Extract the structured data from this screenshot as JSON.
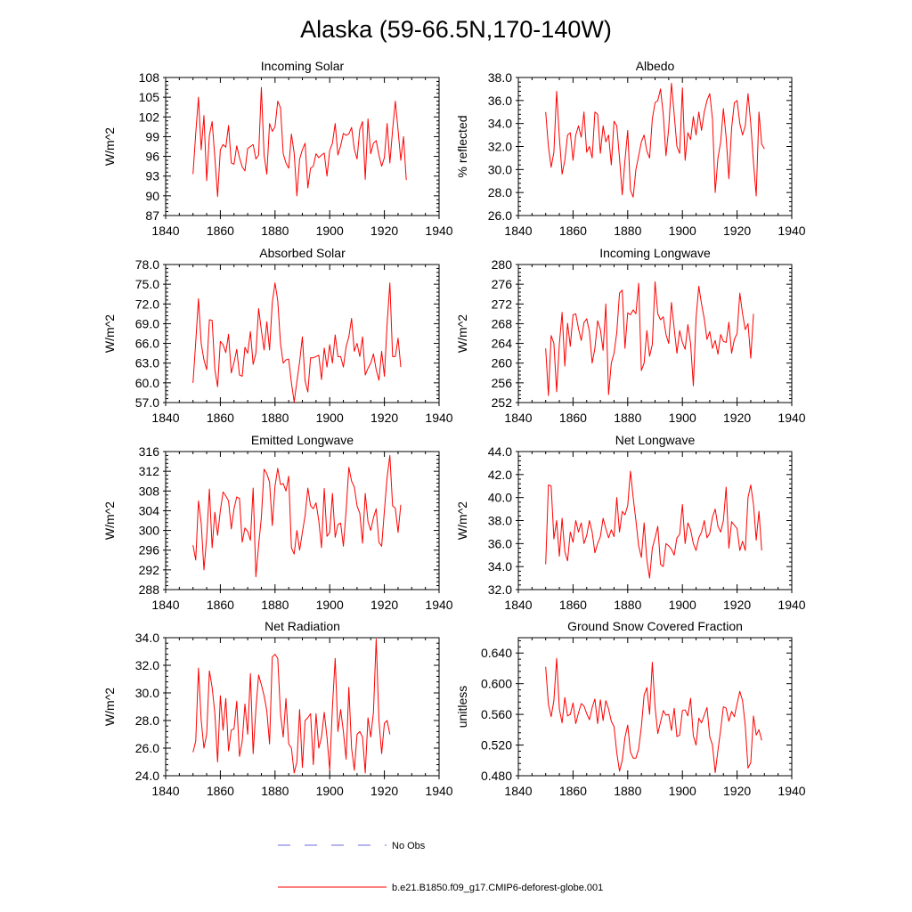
{
  "figure": {
    "title": "Alaska (59-66.5N,170-140W)",
    "x_ticks": [
      1840,
      1860,
      1880,
      1900,
      1920,
      1940
    ],
    "line_color": "#ff0000",
    "obs_color": "#6b6bdb"
  },
  "legend": {
    "obs_label": "No Obs",
    "model_label": "b.e21.B1850.f09_g17.CMIP6-deforest-globe.001"
  },
  "chart_data": [
    {
      "type": "line",
      "title": "Incoming Solar",
      "ylabel": "W/m^2",
      "xlim": [
        1840,
        1940
      ],
      "ylim": [
        87,
        108
      ],
      "yticks": [
        "87",
        "90",
        "93",
        "96",
        "99",
        "102",
        "105",
        "108"
      ],
      "xstart": 1850,
      "values": [
        93.3,
        99.5,
        105.0,
        97.0,
        102.2,
        92.3,
        99.2,
        101.3,
        95.8,
        89.9,
        97.0,
        97.8,
        97.4,
        100.7,
        95.0,
        94.8,
        97.6,
        95.8,
        94.4,
        93.8,
        97.2,
        97.5,
        97.8,
        95.6,
        96.2,
        106.5,
        96.2,
        93.3,
        101.0,
        99.8,
        100.5,
        104.4,
        103.4,
        96.4,
        95.0,
        94.2,
        99.4,
        96.5,
        90.0,
        95.6,
        97.0,
        98.0,
        91.2,
        94.2,
        94.5,
        96.4,
        95.8,
        96.2,
        96.5,
        93.0,
        96.9,
        98.0,
        101.0,
        96.2,
        97.6,
        99.5,
        99.2,
        99.4,
        100.4,
        97.1,
        95.6,
        100.1,
        101.3,
        92.5,
        101.7,
        96.4,
        98.0,
        98.4,
        96.2,
        94.5,
        95.8,
        101.0,
        95.0,
        100.0,
        104.4,
        100.0,
        95.4,
        99.0,
        92.4
      ]
    },
    {
      "type": "line",
      "title": "Albedo",
      "ylabel": "% reflected",
      "xlim": [
        1840,
        1940
      ],
      "ylim": [
        26,
        38
      ],
      "yticks": [
        "26.0",
        "28.0",
        "30.0",
        "32.0",
        "34.0",
        "36.0",
        "38.0"
      ],
      "xstart": 1850,
      "values": [
        35.0,
        32.0,
        30.2,
        31.5,
        36.8,
        32.8,
        29.6,
        30.8,
        33.0,
        33.2,
        30.8,
        33.0,
        33.8,
        32.8,
        35.0,
        31.5,
        32.0,
        31.0,
        35.0,
        34.8,
        31.4,
        33.8,
        32.4,
        33.0,
        30.4,
        34.2,
        33.8,
        31.0,
        27.8,
        30.8,
        33.4,
        28.2,
        27.6,
        30.0,
        31.2,
        32.4,
        33.0,
        31.6,
        31.0,
        34.4,
        35.8,
        36.0,
        37.0,
        34.8,
        31.2,
        33.6,
        37.5,
        34.8,
        32.0,
        31.4,
        37.1,
        30.8,
        33.2,
        32.6,
        34.6,
        33.0,
        35.0,
        33.4,
        35.0,
        36.0,
        36.6,
        34.4,
        28.0,
        31.0,
        32.4,
        35.3,
        32.8,
        29.2,
        33.6,
        35.8,
        36.0,
        34.0,
        33.0,
        33.8,
        36.6,
        34.0,
        30.6,
        27.7,
        35.0,
        32.2,
        31.8
      ]
    },
    {
      "type": "line",
      "title": "Absorbed Solar",
      "ylabel": "W/m^2",
      "xlim": [
        1840,
        1940
      ],
      "ylim": [
        57,
        78
      ],
      "yticks": [
        "57.0",
        "60.0",
        "63.0",
        "66.0",
        "69.0",
        "72.0",
        "75.0",
        "78.0"
      ],
      "xstart": 1850,
      "values": [
        60.0,
        66.2,
        72.8,
        66.0,
        63.5,
        62.0,
        69.6,
        69.5,
        62.0,
        59.4,
        66.3,
        65.8,
        64.6,
        67.4,
        61.5,
        63.1,
        65.1,
        61.2,
        61.0,
        65.4,
        64.5,
        67.8,
        62.8,
        64.5,
        71.3,
        68.0,
        65.0,
        69.3,
        65.0,
        72.2,
        75.2,
        72.5,
        66.0,
        63.0,
        63.5,
        63.6,
        60.0,
        57.1,
        60.2,
        63.2,
        67.0,
        60.3,
        58.6,
        63.8,
        63.8,
        64.0,
        64.2,
        60.5,
        65.3,
        62.4,
        65.8,
        63.0,
        67.3,
        64.0,
        64.0,
        62.4,
        65.5,
        67.0,
        69.8,
        64.8,
        66.0,
        64.0,
        67.0,
        61.2,
        62.2,
        63.0,
        64.4,
        62.0,
        60.4,
        64.8,
        61.0,
        69.0,
        75.2,
        64.0,
        64.0,
        66.8,
        62.4
      ]
    },
    {
      "type": "line",
      "title": "Incoming Longwave",
      "ylabel": "W/m^2",
      "xlim": [
        1840,
        1940
      ],
      "ylim": [
        252,
        280
      ],
      "yticks": [
        "252",
        "256",
        "260",
        "264",
        "268",
        "272",
        "276",
        "280"
      ],
      "xstart": 1850,
      "values": [
        263.0,
        253.4,
        265.6,
        264.0,
        254.2,
        263.8,
        270.3,
        259.4,
        268.1,
        263.4,
        269.8,
        270.0,
        267.0,
        264.6,
        268.2,
        269.0,
        266.4,
        260.0,
        263.0,
        268.6,
        266.8,
        262.6,
        272.0,
        253.6,
        260.0,
        262.0,
        266.2,
        274.2,
        274.8,
        263.0,
        270.2,
        269.8,
        270.8,
        270.0,
        276.2,
        258.5,
        260.0,
        266.6,
        261.4,
        263.8,
        276.5,
        270.0,
        268.8,
        269.4,
        265.8,
        264.0,
        272.3,
        267.0,
        262.0,
        266.6,
        264.2,
        262.8,
        267.8,
        264.0,
        255.4,
        269.2,
        275.6,
        272.0,
        269.0,
        264.8,
        266.4,
        263.0,
        264.6,
        261.8,
        265.8,
        264.4,
        264.2,
        268.3,
        262.0,
        264.8,
        266.0,
        274.2,
        270.0,
        266.8,
        268.0,
        261.0,
        270.0
      ]
    },
    {
      "type": "line",
      "title": "Emitted Longwave",
      "ylabel": "W/m^2",
      "xlim": [
        1840,
        1940
      ],
      "ylim": [
        288,
        316
      ],
      "yticks": [
        "288",
        "292",
        "296",
        "300",
        "304",
        "308",
        "312",
        "316"
      ],
      "xstart": 1850,
      "values": [
        297.0,
        294.0,
        306.0,
        301.5,
        292.0,
        298.5,
        308.4,
        296.5,
        303.7,
        299.0,
        304.0,
        307.8,
        307.0,
        306.0,
        300.3,
        304.4,
        306.8,
        306.5,
        297.6,
        300.5,
        299.8,
        298.0,
        308.6,
        290.6,
        297.0,
        302.6,
        312.4,
        311.5,
        309.8,
        301.0,
        309.0,
        312.6,
        309.3,
        309.5,
        308.0,
        311.0,
        296.5,
        295.2,
        300.0,
        296.0,
        299.6,
        303.0,
        308.6,
        305.0,
        304.4,
        305.6,
        302.0,
        296.5,
        308.5,
        298.8,
        299.6,
        307.5,
        298.6,
        301.2,
        301.5,
        296.8,
        304.0,
        312.8,
        310.0,
        308.8,
        305.0,
        303.5,
        297.4,
        307.5,
        301.8,
        300.0,
        302.6,
        304.4,
        297.6,
        296.8,
        304.0,
        310.8,
        315.2,
        305.0,
        304.5,
        299.6,
        305.2
      ]
    },
    {
      "type": "line",
      "title": "Net Longwave",
      "ylabel": "W/m^2",
      "xlim": [
        1840,
        1940
      ],
      "ylim": [
        32,
        44
      ],
      "yticks": [
        "32.0",
        "34.0",
        "36.0",
        "38.0",
        "40.0",
        "42.0",
        "44.0"
      ],
      "xstart": 1850,
      "values": [
        34.2,
        41.1,
        41.0,
        36.4,
        38.0,
        34.9,
        38.2,
        35.3,
        34.5,
        37.0,
        36.1,
        38.0,
        37.0,
        37.8,
        36.0,
        36.7,
        38.0,
        37.0,
        35.2,
        36.0,
        36.6,
        38.2,
        37.3,
        36.5,
        37.2,
        36.6,
        40.0,
        37.0,
        38.8,
        38.5,
        39.3,
        42.3,
        40.0,
        38.0,
        35.8,
        34.8,
        37.8,
        34.6,
        33.0,
        35.6,
        36.5,
        37.5,
        34.2,
        34.0,
        36.0,
        35.8,
        35.5,
        35.0,
        36.5,
        36.8,
        39.4,
        36.0,
        37.8,
        37.2,
        36.0,
        35.4,
        36.5,
        37.0,
        38.0,
        36.5,
        36.9,
        38.3,
        39.0,
        37.5,
        37.0,
        38.0,
        40.9,
        35.6,
        37.9,
        37.6,
        37.3,
        35.4,
        36.2,
        35.4,
        40.0,
        41.1,
        39.4,
        36.3,
        38.8,
        35.4
      ]
    },
    {
      "type": "line",
      "title": "Net Radiation",
      "ylabel": "W/m^2",
      "xlim": [
        1840,
        1940
      ],
      "ylim": [
        24,
        34
      ],
      "yticks": [
        "24.0",
        "26.0",
        "28.0",
        "30.0",
        "32.0",
        "34.0"
      ],
      "xstart": 1850,
      "values": [
        25.7,
        26.5,
        31.8,
        28.0,
        26.0,
        27.0,
        31.6,
        30.4,
        28.5,
        25.0,
        29.8,
        27.3,
        29.6,
        25.8,
        27.3,
        27.4,
        29.4,
        25.4,
        26.5,
        29.2,
        27.0,
        31.4,
        25.6,
        28.8,
        31.3,
        30.6,
        29.8,
        28.7,
        26.3,
        32.6,
        32.8,
        32.5,
        28.5,
        26.8,
        29.6,
        26.3,
        26.0,
        24.2,
        25.0,
        28.8,
        24.6,
        28.0,
        28.2,
        28.5,
        24.8,
        28.5,
        26.0,
        26.8,
        28.6,
        26.8,
        24.4,
        29.0,
        32.5,
        27.2,
        28.8,
        27.2,
        25.2,
        30.4,
        26.0,
        24.4,
        27.0,
        27.2,
        26.8,
        24.2,
        28.2,
        26.8,
        28.6,
        33.9,
        28.0,
        25.6,
        27.8,
        28.0,
        27.0
      ]
    },
    {
      "type": "line",
      "title": "Ground Snow Covered Fraction",
      "ylabel": "unitless",
      "xlim": [
        1840,
        1940
      ],
      "ylim": [
        0.48,
        0.66
      ],
      "yticks": [
        "0.480",
        "0.520",
        "0.560",
        "0.600",
        "0.640"
      ],
      "xstart": 1850,
      "values": [
        0.622,
        0.573,
        0.557,
        0.578,
        0.633,
        0.567,
        0.549,
        0.582,
        0.558,
        0.56,
        0.575,
        0.548,
        0.562,
        0.574,
        0.571,
        0.561,
        0.553,
        0.569,
        0.58,
        0.548,
        0.579,
        0.552,
        0.578,
        0.567,
        0.551,
        0.544,
        0.51,
        0.486,
        0.5,
        0.53,
        0.546,
        0.511,
        0.503,
        0.503,
        0.515,
        0.544,
        0.585,
        0.595,
        0.56,
        0.628,
        0.57,
        0.535,
        0.55,
        0.565,
        0.559,
        0.56,
        0.539,
        0.568,
        0.531,
        0.533,
        0.565,
        0.566,
        0.558,
        0.581,
        0.532,
        0.52,
        0.555,
        0.549,
        0.559,
        0.569,
        0.531,
        0.52,
        0.484,
        0.513,
        0.54,
        0.57,
        0.568,
        0.551,
        0.564,
        0.557,
        0.574,
        0.59,
        0.578,
        0.545,
        0.49,
        0.497,
        0.558,
        0.533,
        0.54,
        0.526
      ]
    }
  ]
}
